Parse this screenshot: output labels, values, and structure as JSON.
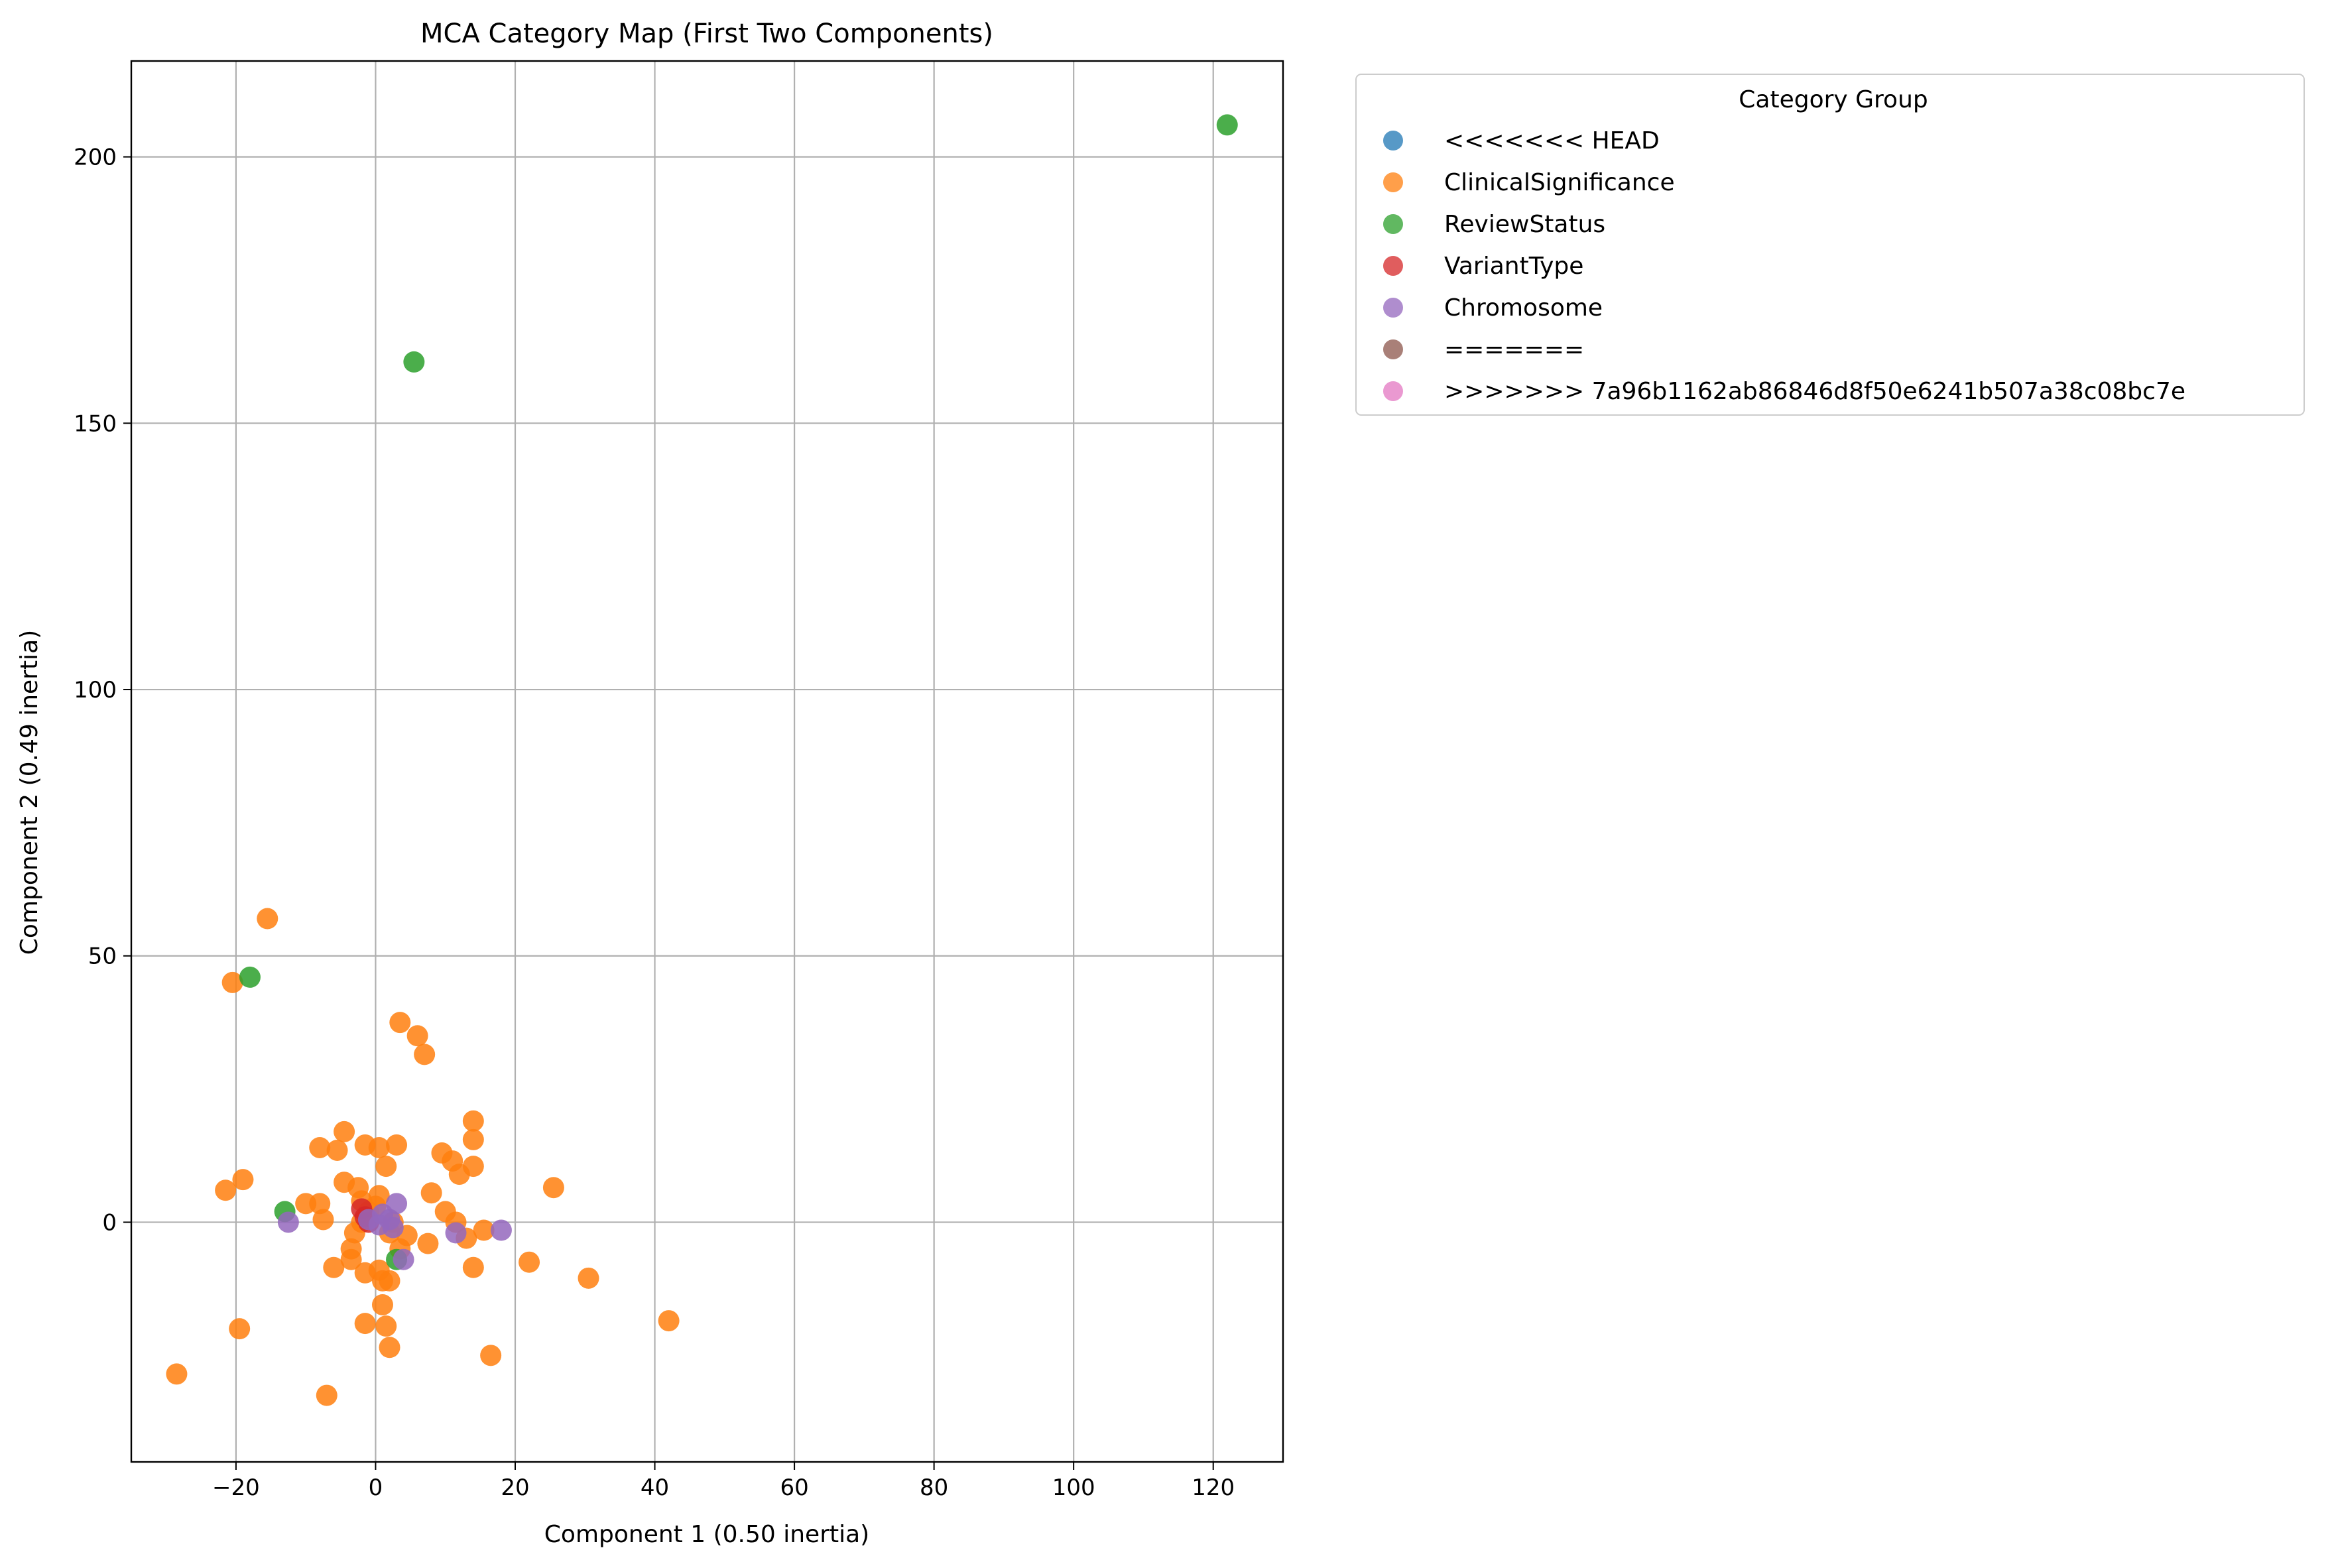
{
  "chart_data": {
    "type": "scatter",
    "title": "MCA Category Map (First Two Components)",
    "xlabel": "Component 1 (0.50 inertia)",
    "ylabel": "Component 2 (0.49 inertia)",
    "xlim": [
      -35,
      130
    ],
    "ylim": [
      -45,
      218
    ],
    "xticks": [
      -20,
      0,
      20,
      40,
      60,
      80,
      100,
      120
    ],
    "yticks": [
      0,
      50,
      100,
      150,
      200
    ],
    "xtick_labels": [
      "−20",
      "0",
      "20",
      "40",
      "60",
      "80",
      "100",
      "120"
    ],
    "ytick_labels": [
      "0",
      "50",
      "100",
      "150",
      "200"
    ],
    "grid": true,
    "legend": {
      "title": "Category Group",
      "placement": "outside-upper-right"
    },
    "series": [
      {
        "name": "<<<<<<< HEAD",
        "color": "#1f77b4",
        "points": []
      },
      {
        "name": "ClinicalSignificance",
        "color": "#ff7f0e",
        "points": [
          [
            -28.5,
            -28.5
          ],
          [
            -21.5,
            6
          ],
          [
            -20.5,
            45
          ],
          [
            -19.5,
            -20
          ],
          [
            -19,
            8
          ],
          [
            -15.5,
            57
          ],
          [
            -10,
            3.5
          ],
          [
            -8,
            14
          ],
          [
            -8,
            3.5
          ],
          [
            -7.5,
            0.5
          ],
          [
            -7,
            -32.5
          ],
          [
            -6,
            -8.5
          ],
          [
            -5.5,
            13.5
          ],
          [
            -4.5,
            17
          ],
          [
            -4.5,
            7.5
          ],
          [
            -3.5,
            -7
          ],
          [
            -3.5,
            -5
          ],
          [
            -3,
            -2
          ],
          [
            -2.5,
            6.5
          ],
          [
            -2,
            4
          ],
          [
            -2,
            0
          ],
          [
            -1.5,
            -19
          ],
          [
            -1.5,
            -9.5
          ],
          [
            -1.5,
            14.5
          ],
          [
            -1,
            2
          ],
          [
            0,
            3
          ],
          [
            0.5,
            -9
          ],
          [
            0.5,
            5
          ],
          [
            0.5,
            14
          ],
          [
            1,
            -15.5
          ],
          [
            1,
            -11
          ],
          [
            1.5,
            -19.5
          ],
          [
            1.5,
            10.5
          ],
          [
            2,
            -23.5
          ],
          [
            2,
            -11
          ],
          [
            2,
            -2
          ],
          [
            2.5,
            0
          ],
          [
            3,
            14.5
          ],
          [
            3.5,
            -5
          ],
          [
            3.5,
            37.5
          ],
          [
            4.5,
            -2.5
          ],
          [
            6,
            35
          ],
          [
            7,
            31.5
          ],
          [
            7.5,
            -4
          ],
          [
            8,
            5.5
          ],
          [
            9.5,
            13
          ],
          [
            10,
            2
          ],
          [
            11,
            11.5
          ],
          [
            11.5,
            0
          ],
          [
            12,
            9
          ],
          [
            13,
            -3
          ],
          [
            14,
            19
          ],
          [
            14,
            15.5
          ],
          [
            14,
            -8.5
          ],
          [
            14,
            10.5
          ],
          [
            15.5,
            -1.5
          ],
          [
            16.5,
            -25
          ],
          [
            22,
            -7.5
          ],
          [
            25.5,
            6.5
          ],
          [
            30.5,
            -10.5
          ],
          [
            42,
            -18.5
          ]
        ]
      },
      {
        "name": "ReviewStatus",
        "color": "#2ca02c",
        "points": [
          [
            -18,
            46
          ],
          [
            -13,
            2
          ],
          [
            3,
            -7
          ],
          [
            5.5,
            161.5
          ],
          [
            122,
            206
          ]
        ]
      },
      {
        "name": "VariantType",
        "color": "#d62728",
        "points": [
          [
            -2,
            2.5
          ],
          [
            -1.5,
            1
          ],
          [
            -1,
            0
          ]
        ]
      },
      {
        "name": "Chromosome",
        "color": "#9467bd",
        "points": [
          [
            -12.5,
            0
          ],
          [
            -1,
            0.5
          ],
          [
            0.5,
            -0.5
          ],
          [
            1,
            1.5
          ],
          [
            2,
            0.5
          ],
          [
            2.5,
            -1
          ],
          [
            3,
            3.5
          ],
          [
            4,
            -7
          ],
          [
            11.5,
            -2
          ],
          [
            18,
            -1.5
          ]
        ]
      },
      {
        "name": "=======",
        "color": "#8c564b",
        "points": []
      },
      {
        "name": ">>>>>>> 7a96b1162ab86846d8f50e6241b507a38c08bc7e",
        "color": "#e377c2",
        "points": []
      }
    ]
  }
}
